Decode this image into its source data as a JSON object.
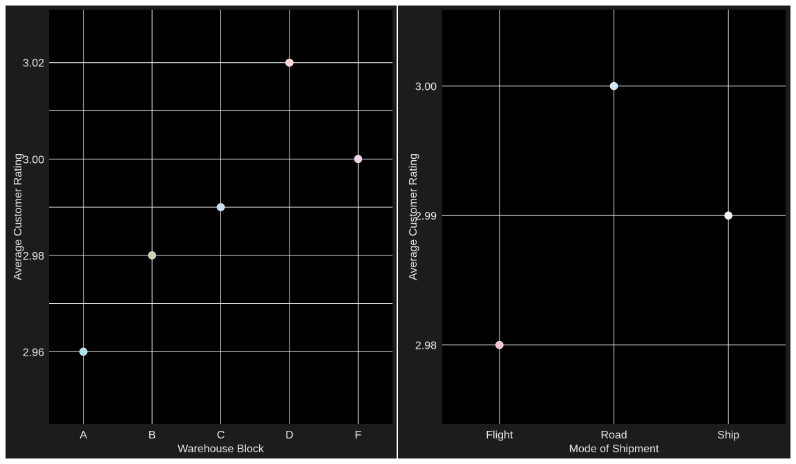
{
  "colors": {
    "panel_background": "#1c1c1c",
    "plot_background": "#000000",
    "grid": "#ffffff",
    "text": "#e6e6e6"
  },
  "chart_data": [
    {
      "type": "scatter",
      "title": "",
      "xlabel": "Warehouse Block",
      "ylabel": "Average Customer Rating",
      "categories": [
        "A",
        "B",
        "C",
        "D",
        "F"
      ],
      "values": [
        2.96,
        2.98,
        2.99,
        3.02,
        3.0
      ],
      "point_colors": [
        "#a6e3f2",
        "#c3d3b4",
        "#c8dcf6",
        "#fcd6d2",
        "#f0d2ee"
      ],
      "ylim": [
        2.945,
        3.031
      ],
      "yticks": [
        2.96,
        2.98,
        3.0,
        3.02
      ],
      "ytick_labels": [
        "2.96",
        "2.98",
        "3.00",
        "3.02"
      ],
      "yminor": [
        2.97,
        2.99,
        3.01
      ],
      "grid": true,
      "legend": "none"
    },
    {
      "type": "scatter",
      "title": "",
      "xlabel": "Mode of Shipment",
      "ylabel": "Average Customer Rating",
      "categories": [
        "Flight",
        "Road",
        "Ship"
      ],
      "values": [
        2.98,
        3.0,
        2.99
      ],
      "point_colors": [
        "#f8c1cb",
        "#cde6fa",
        "#e9f5fb"
      ],
      "ylim": [
        2.9739,
        3.0059
      ],
      "yticks": [
        2.98,
        2.99,
        3.0
      ],
      "ytick_labels": [
        "2.98",
        "2.99",
        "3.00"
      ],
      "yminor": [],
      "grid": true,
      "legend": "none"
    }
  ]
}
